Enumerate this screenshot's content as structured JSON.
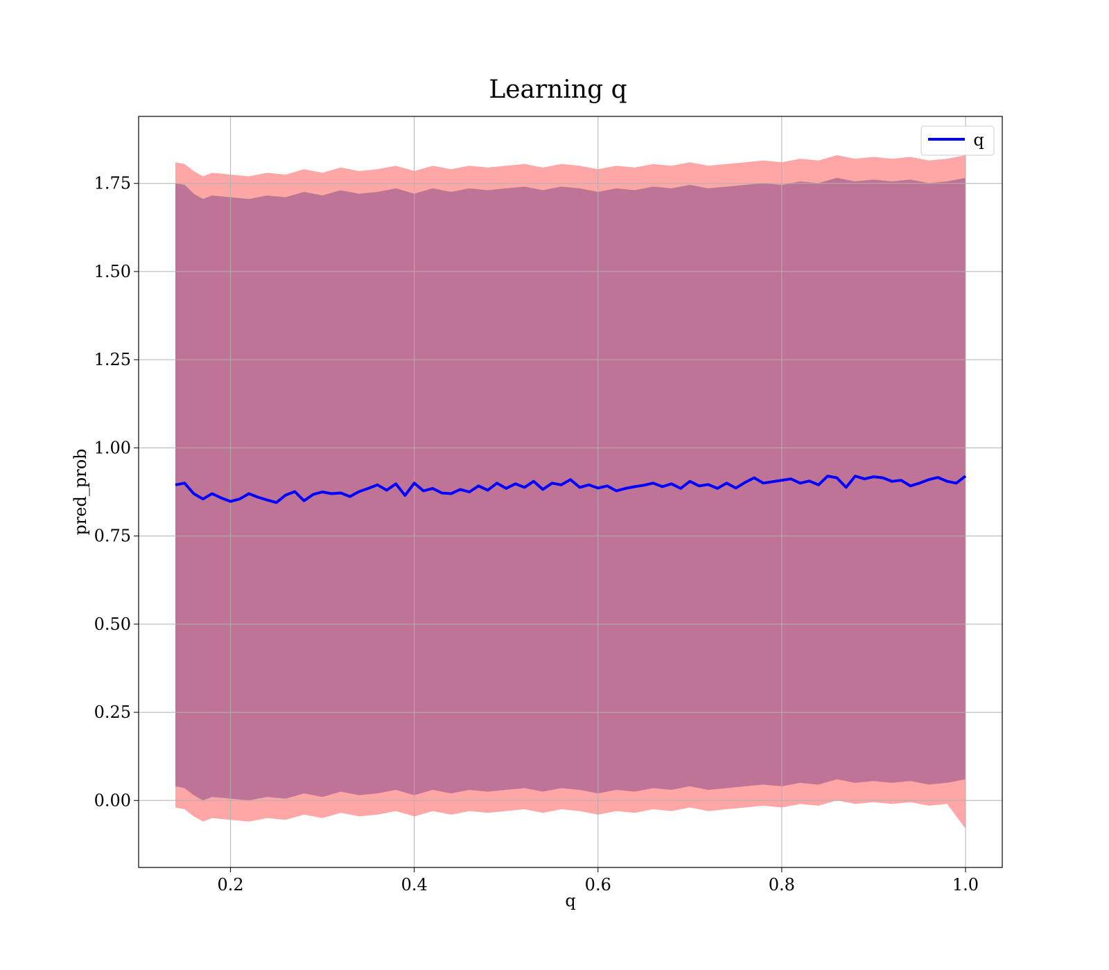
{
  "chart_data": {
    "type": "area",
    "title": "Learning q",
    "xlabel": "q",
    "ylabel": "pred_prob",
    "xlim": [
      0.1,
      1.04
    ],
    "ylim": [
      -0.19,
      1.94
    ],
    "x_ticks": [
      0.2,
      0.4,
      0.6,
      0.8,
      1.0
    ],
    "x_tick_labels": [
      "0.2",
      "0.4",
      "0.6",
      "0.8",
      "1.0"
    ],
    "y_ticks": [
      0.0,
      0.25,
      0.5,
      0.75,
      1.0,
      1.25,
      1.5,
      1.75
    ],
    "y_tick_labels": [
      "0.00",
      "0.25",
      "0.50",
      "0.75",
      "1.00",
      "1.25",
      "1.50",
      "1.75"
    ],
    "grid": true,
    "legend": {
      "placement": "top-right",
      "entries": [
        {
          "label": "q",
          "color": "#0000ff"
        }
      ]
    },
    "series": [
      {
        "name": "q",
        "color": "#0000ff",
        "x": [
          0.14,
          0.15,
          0.16,
          0.17,
          0.18,
          0.19,
          0.2,
          0.21,
          0.22,
          0.23,
          0.24,
          0.25,
          0.26,
          0.27,
          0.28,
          0.29,
          0.3,
          0.31,
          0.32,
          0.33,
          0.34,
          0.35,
          0.36,
          0.37,
          0.38,
          0.39,
          0.4,
          0.41,
          0.42,
          0.43,
          0.44,
          0.45,
          0.46,
          0.47,
          0.48,
          0.49,
          0.5,
          0.51,
          0.52,
          0.53,
          0.54,
          0.55,
          0.56,
          0.57,
          0.58,
          0.59,
          0.6,
          0.61,
          0.62,
          0.63,
          0.64,
          0.65,
          0.66,
          0.67,
          0.68,
          0.69,
          0.7,
          0.71,
          0.72,
          0.73,
          0.74,
          0.75,
          0.76,
          0.77,
          0.78,
          0.79,
          0.8,
          0.81,
          0.82,
          0.83,
          0.84,
          0.85,
          0.86,
          0.87,
          0.88,
          0.89,
          0.9,
          0.91,
          0.92,
          0.93,
          0.94,
          0.95,
          0.96,
          0.97,
          0.98,
          0.99,
          1.0
        ],
        "y": [
          0.895,
          0.9,
          0.87,
          0.855,
          0.87,
          0.858,
          0.848,
          0.855,
          0.87,
          0.86,
          0.852,
          0.845,
          0.866,
          0.876,
          0.85,
          0.868,
          0.875,
          0.87,
          0.872,
          0.862,
          0.876,
          0.885,
          0.895,
          0.88,
          0.898,
          0.865,
          0.9,
          0.878,
          0.885,
          0.872,
          0.87,
          0.882,
          0.875,
          0.892,
          0.88,
          0.9,
          0.885,
          0.898,
          0.888,
          0.905,
          0.882,
          0.9,
          0.895,
          0.91,
          0.888,
          0.895,
          0.886,
          0.892,
          0.878,
          0.885,
          0.89,
          0.894,
          0.9,
          0.89,
          0.898,
          0.885,
          0.905,
          0.892,
          0.896,
          0.885,
          0.9,
          0.886,
          0.902,
          0.915,
          0.9,
          0.904,
          0.908,
          0.912,
          0.9,
          0.906,
          0.895,
          0.92,
          0.915,
          0.888,
          0.92,
          0.912,
          0.918,
          0.915,
          0.905,
          0.908,
          0.892,
          0.9,
          0.91,
          0.916,
          0.905,
          0.9,
          0.92
        ]
      },
      {
        "name": "",
        "role": "upper band (outer)",
        "color": "#ff8080",
        "x": [
          0.14,
          0.15,
          0.16,
          0.17,
          0.18,
          0.2,
          0.22,
          0.24,
          0.26,
          0.28,
          0.3,
          0.32,
          0.34,
          0.36,
          0.38,
          0.4,
          0.42,
          0.44,
          0.46,
          0.48,
          0.5,
          0.52,
          0.54,
          0.56,
          0.58,
          0.6,
          0.62,
          0.64,
          0.66,
          0.68,
          0.7,
          0.72,
          0.74,
          0.76,
          0.78,
          0.8,
          0.82,
          0.84,
          0.86,
          0.88,
          0.9,
          0.92,
          0.94,
          0.96,
          0.98,
          1.0
        ],
        "y": [
          1.81,
          1.805,
          1.785,
          1.77,
          1.78,
          1.775,
          1.77,
          1.78,
          1.775,
          1.79,
          1.78,
          1.795,
          1.785,
          1.79,
          1.8,
          1.785,
          1.8,
          1.79,
          1.8,
          1.795,
          1.8,
          1.805,
          1.795,
          1.805,
          1.8,
          1.79,
          1.8,
          1.795,
          1.805,
          1.8,
          1.81,
          1.8,
          1.805,
          1.81,
          1.815,
          1.81,
          1.82,
          1.815,
          1.83,
          1.82,
          1.825,
          1.82,
          1.825,
          1.815,
          1.82,
          1.83
        ]
      },
      {
        "name": "",
        "role": "upper band (inner)",
        "color": "#8b4a8b",
        "x": [
          0.14,
          0.15,
          0.16,
          0.17,
          0.18,
          0.2,
          0.22,
          0.24,
          0.26,
          0.28,
          0.3,
          0.32,
          0.34,
          0.36,
          0.38,
          0.4,
          0.42,
          0.44,
          0.46,
          0.48,
          0.5,
          0.52,
          0.54,
          0.56,
          0.58,
          0.6,
          0.62,
          0.64,
          0.66,
          0.68,
          0.7,
          0.72,
          0.74,
          0.76,
          0.78,
          0.8,
          0.82,
          0.84,
          0.86,
          0.88,
          0.9,
          0.92,
          0.94,
          0.96,
          0.98,
          1.0
        ],
        "y": [
          1.75,
          1.745,
          1.72,
          1.705,
          1.715,
          1.71,
          1.705,
          1.715,
          1.71,
          1.725,
          1.715,
          1.73,
          1.72,
          1.725,
          1.735,
          1.72,
          1.735,
          1.725,
          1.735,
          1.73,
          1.735,
          1.74,
          1.73,
          1.74,
          1.735,
          1.725,
          1.735,
          1.73,
          1.74,
          1.735,
          1.745,
          1.735,
          1.74,
          1.745,
          1.75,
          1.745,
          1.755,
          1.75,
          1.765,
          1.755,
          1.76,
          1.755,
          1.76,
          1.75,
          1.755,
          1.765
        ]
      },
      {
        "name": "",
        "role": "lower band (inner)",
        "color": "#8b4a8b",
        "x": [
          0.14,
          0.15,
          0.16,
          0.17,
          0.18,
          0.2,
          0.22,
          0.24,
          0.26,
          0.28,
          0.3,
          0.32,
          0.34,
          0.36,
          0.38,
          0.4,
          0.42,
          0.44,
          0.46,
          0.48,
          0.5,
          0.52,
          0.54,
          0.56,
          0.58,
          0.6,
          0.62,
          0.64,
          0.66,
          0.68,
          0.7,
          0.72,
          0.74,
          0.76,
          0.78,
          0.8,
          0.82,
          0.84,
          0.86,
          0.88,
          0.9,
          0.92,
          0.94,
          0.96,
          0.98,
          1.0
        ],
        "y": [
          0.04,
          0.035,
          0.015,
          0.0,
          0.01,
          0.005,
          0.0,
          0.01,
          0.005,
          0.02,
          0.01,
          0.025,
          0.015,
          0.02,
          0.03,
          0.015,
          0.03,
          0.02,
          0.03,
          0.025,
          0.03,
          0.035,
          0.025,
          0.035,
          0.03,
          0.02,
          0.03,
          0.025,
          0.035,
          0.03,
          0.04,
          0.03,
          0.035,
          0.04,
          0.045,
          0.04,
          0.05,
          0.045,
          0.06,
          0.05,
          0.055,
          0.05,
          0.055,
          0.045,
          0.05,
          0.06
        ]
      },
      {
        "name": "",
        "role": "lower band (outer)",
        "color": "#ff8080",
        "x": [
          0.14,
          0.15,
          0.16,
          0.17,
          0.18,
          0.2,
          0.22,
          0.24,
          0.26,
          0.28,
          0.3,
          0.32,
          0.34,
          0.36,
          0.38,
          0.4,
          0.42,
          0.44,
          0.46,
          0.48,
          0.5,
          0.52,
          0.54,
          0.56,
          0.58,
          0.6,
          0.62,
          0.64,
          0.66,
          0.68,
          0.7,
          0.72,
          0.74,
          0.76,
          0.78,
          0.8,
          0.82,
          0.84,
          0.86,
          0.88,
          0.9,
          0.92,
          0.94,
          0.96,
          0.98,
          1.0
        ],
        "y": [
          -0.02,
          -0.025,
          -0.045,
          -0.06,
          -0.05,
          -0.055,
          -0.06,
          -0.05,
          -0.055,
          -0.04,
          -0.05,
          -0.035,
          -0.045,
          -0.04,
          -0.03,
          -0.045,
          -0.03,
          -0.04,
          -0.03,
          -0.035,
          -0.03,
          -0.025,
          -0.035,
          -0.025,
          -0.03,
          -0.04,
          -0.03,
          -0.035,
          -0.025,
          -0.03,
          -0.02,
          -0.03,
          -0.025,
          -0.02,
          -0.015,
          -0.02,
          -0.01,
          -0.015,
          0.0,
          -0.01,
          -0.005,
          -0.01,
          -0.005,
          -0.015,
          -0.01,
          -0.08
        ]
      }
    ]
  }
}
